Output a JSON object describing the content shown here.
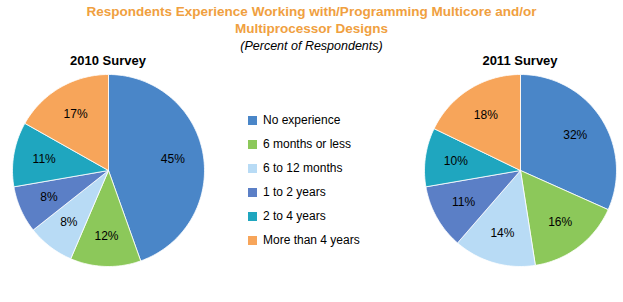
{
  "chart_data": {
    "type": "pie",
    "title": "Respondents Experience Working with/Programming Multicore and/or Multiprocessor Designs",
    "subtitle": "(Percent of Respondents)",
    "categories": [
      "No experience",
      "6 months or less",
      "6 to 12 months",
      "1 to 2 years",
      "2 to 4 years",
      "More than 4 years"
    ],
    "colors": [
      "#4a86c8",
      "#8cc85a",
      "#b8dbf5",
      "#5b7fc6",
      "#1fa6bf",
      "#f7a55a"
    ],
    "series": [
      {
        "name": "2010 Survey",
        "values": [
          45,
          12,
          8,
          8,
          11,
          17
        ],
        "value_labels": [
          "45%",
          "12%",
          "8%",
          "8%",
          "11%",
          "17%"
        ]
      },
      {
        "name": "2011 Survey",
        "values": [
          32,
          16,
          14,
          11,
          10,
          18
        ],
        "value_labels": [
          "32%",
          "16%",
          "14%",
          "11%",
          "10%",
          "18%"
        ]
      }
    ],
    "data_labels": true,
    "legend": "center"
  }
}
